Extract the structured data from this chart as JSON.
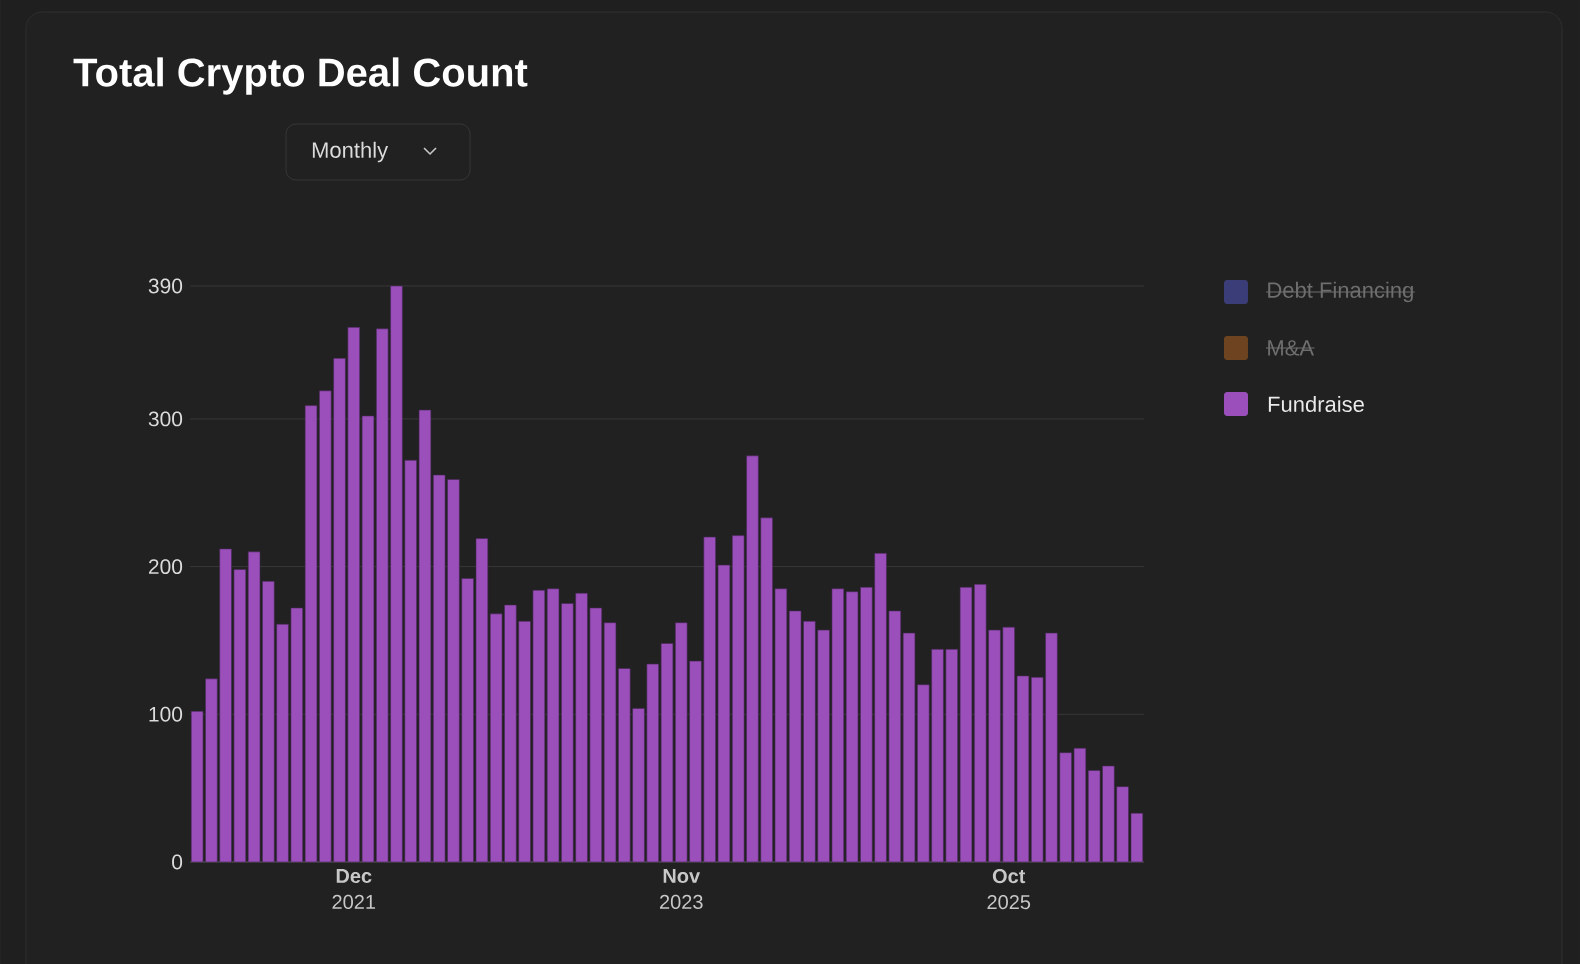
{
  "chart_data": {
    "type": "bar",
    "title": "Total Crypto Deal Count",
    "annotations": [
      "Monthly"
    ],
    "categories": [
      null,
      null,
      null,
      null,
      null,
      null,
      null,
      null,
      null,
      null,
      null,
      "**Dec** 2021",
      null,
      null,
      null,
      null,
      null,
      null,
      null,
      null,
      null,
      null,
      null,
      null,
      null,
      null,
      null,
      null,
      null,
      null,
      null,
      null,
      null,
      null,
      "**Nov** 2023",
      null,
      null,
      null,
      null,
      null,
      null,
      null,
      null,
      null,
      null,
      null,
      null,
      null,
      null,
      null,
      null,
      null,
      null,
      null,
      null,
      null,
      null,
      "**Oct** 2025",
      null,
      null,
      null,
      null,
      null,
      null,
      null,
      null,
      null
    ],
    "series": [
      {
        "name": "Debt Financing",
        "color": "#3b3d78",
        "values": [
          null,
          null,
          null,
          null,
          null,
          null,
          null,
          null,
          null,
          null,
          null,
          null,
          null,
          null,
          null,
          null,
          null,
          null,
          null,
          null,
          null,
          null,
          null,
          null,
          null,
          null,
          null,
          null,
          null,
          null,
          null,
          null,
          null,
          null,
          null,
          null,
          null,
          null,
          null,
          null,
          null,
          null,
          null,
          null,
          null,
          null,
          null,
          null,
          null,
          null,
          null,
          null,
          null,
          null,
          null,
          null,
          null,
          null,
          null,
          null,
          null,
          null,
          null,
          null,
          null,
          null,
          null
        ]
      },
      {
        "name": "M&A",
        "color": "#6e4420",
        "values": [
          null,
          null,
          null,
          null,
          null,
          null,
          null,
          null,
          null,
          null,
          null,
          null,
          null,
          null,
          null,
          null,
          null,
          null,
          null,
          null,
          null,
          null,
          null,
          null,
          null,
          null,
          null,
          null,
          null,
          null,
          null,
          null,
          null,
          null,
          null,
          null,
          null,
          null,
          null,
          null,
          null,
          null,
          null,
          null,
          null,
          null,
          null,
          null,
          null,
          null,
          null,
          null,
          null,
          null,
          null,
          null,
          null,
          null,
          null,
          null,
          null,
          null,
          null,
          null,
          null,
          null,
          null
        ]
      },
      {
        "name": "Fundraise",
        "color": "#9b4fbb",
        "values": [
          102,
          124,
          212,
          198,
          210,
          190,
          161,
          172,
          309,
          319,
          341,
          362,
          302,
          361,
          390,
          272,
          306,
          262,
          259,
          192,
          219,
          168,
          174,
          163,
          184,
          185,
          175,
          182,
          172,
          162,
          131,
          104,
          134,
          148,
          162,
          136,
          220,
          201,
          221,
          275,
          233,
          185,
          170,
          163,
          157,
          185,
          183,
          186,
          209,
          170,
          155,
          120,
          144,
          144,
          186,
          188,
          157,
          159,
          126,
          125,
          155,
          74,
          77,
          62,
          65,
          51,
          33
        ]
      }
    ],
    "ylim": [
      0,
      390
    ],
    "yticks": [
      0,
      100,
      200,
      300,
      390
    ],
    "grid": "y",
    "legend": "top right"
  }
}
